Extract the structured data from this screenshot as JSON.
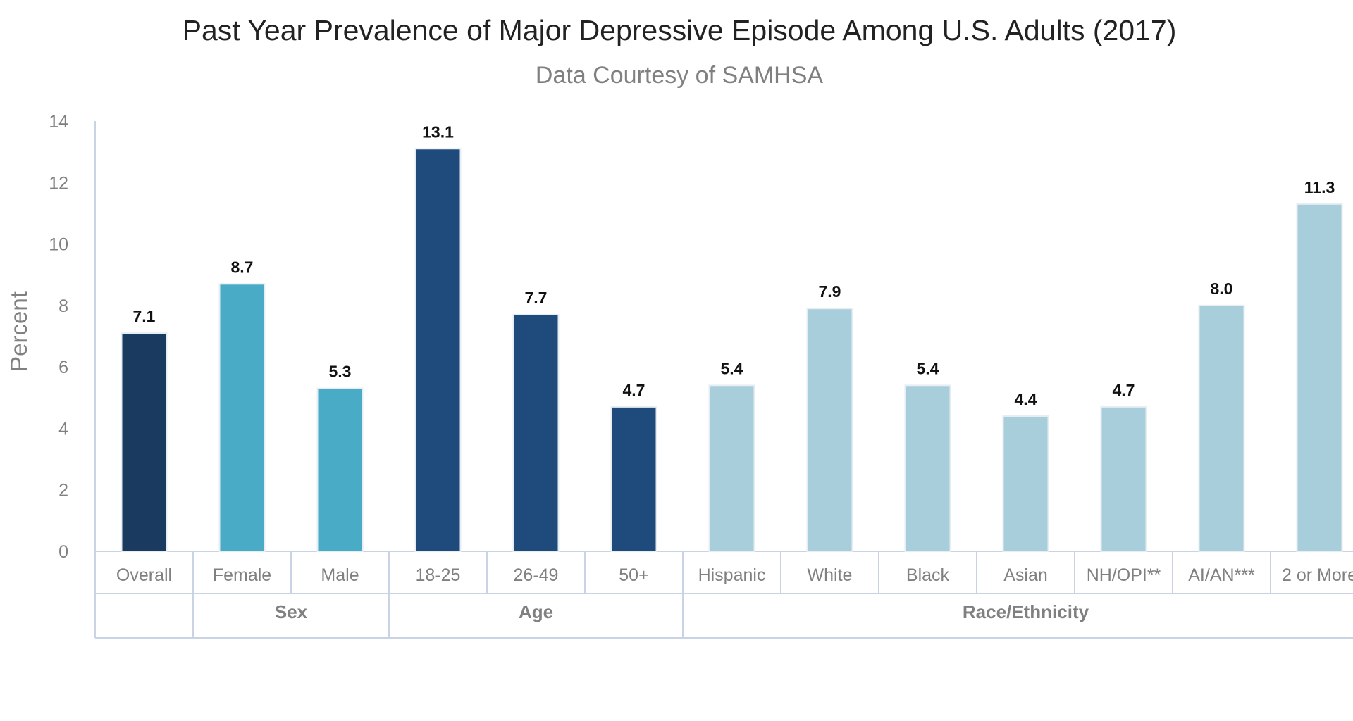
{
  "chart_data": {
    "type": "bar",
    "title": "Past Year Prevalence of Major Depressive Episode Among U.S. Adults (2017)",
    "subtitle": "Data Courtesy of SAMHSA",
    "ylabel": "Percent",
    "ylim": [
      0,
      14
    ],
    "yticks": [
      "0",
      "2",
      "4",
      "6",
      "8",
      "10",
      "12",
      "14"
    ],
    "grid": false,
    "categories": [
      "Overall",
      "Female",
      "Male",
      "18-25",
      "26-49",
      "50+",
      "Hispanic",
      "White",
      "Black",
      "Asian",
      "NH/OPI**",
      "AI/AN***",
      "2 or More"
    ],
    "values": [
      7.1,
      8.7,
      5.3,
      13.1,
      7.7,
      4.7,
      5.4,
      7.9,
      5.4,
      4.4,
      4.7,
      8.0,
      11.3
    ],
    "value_labels": [
      "7.1",
      "8.7",
      "5.3",
      "13.1",
      "7.7",
      "4.7",
      "5.4",
      "7.9",
      "5.4",
      "4.4",
      "4.7",
      "8.0",
      "11.3"
    ],
    "groups": [
      {
        "label": "",
        "count": 1,
        "color": "#1b3a60"
      },
      {
        "label": "Sex",
        "count": 2,
        "color": "#4aabc6"
      },
      {
        "label": "Age",
        "count": 3,
        "color": "#1f4a7c"
      },
      {
        "label": "Race/Ethnicity",
        "count": 7,
        "color": "#a8cedb"
      }
    ]
  }
}
